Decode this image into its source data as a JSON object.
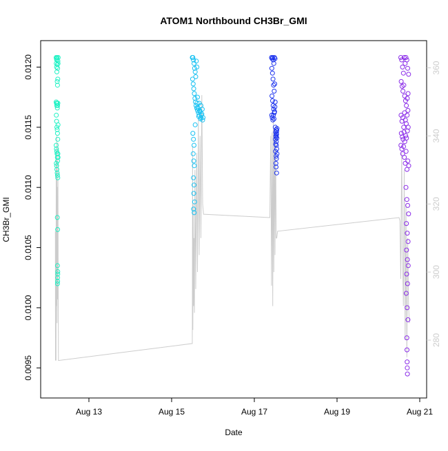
{
  "chart_data": {
    "type": "scatter",
    "title": "ATOM1 Northbound CH3Br_GMI",
    "xlabel": "Date",
    "ylabel": "CH3Br_GMI",
    "x_axis": {
      "type": "date",
      "range": [
        "2016-08-11T20:00",
        "2016-08-21T04:00"
      ],
      "ticks": [
        {
          "value": "2016-08-13",
          "label": "Aug 13"
        },
        {
          "value": "2016-08-15",
          "label": "Aug 15"
        },
        {
          "value": "2016-08-17",
          "label": "Aug 17"
        },
        {
          "value": "2016-08-19",
          "label": "Aug 19"
        },
        {
          "value": "2016-08-21",
          "label": "Aug 21"
        }
      ]
    },
    "y_axis_left": {
      "range": [
        0.00925,
        0.01222
      ],
      "ticks": [
        {
          "value": 0.0095,
          "label": "0.0095"
        },
        {
          "value": 0.01,
          "label": "0.0100"
        },
        {
          "value": 0.0105,
          "label": "0.0105"
        },
        {
          "value": 0.011,
          "label": "0.0110"
        },
        {
          "value": 0.0115,
          "label": "0.0115"
        },
        {
          "value": 0.012,
          "label": "0.0120"
        }
      ]
    },
    "y_axis_right": {
      "range": [
        263,
        368
      ],
      "color": "#cccccc",
      "ticks": [
        {
          "value": 280,
          "label": "280"
        },
        {
          "value": 300,
          "label": "300"
        },
        {
          "value": 320,
          "label": "320"
        },
        {
          "value": 340,
          "label": "340"
        },
        {
          "value": 360,
          "label": "360"
        }
      ]
    },
    "grid": false,
    "legend": "none",
    "colors": {
      "flight1": "#1ff2c4",
      "flight2": "#17c1f2",
      "flight3": "#1a31ee",
      "flight4": "#8a2be8",
      "secondary_line": "#cccccc",
      "axis": "#000000"
    },
    "series": [
      {
        "color_key": "flight1",
        "x": [
          "2016-08-12T05:00",
          "2016-08-12T05:10",
          "2016-08-12T05:20",
          "2016-08-12T05:30",
          "2016-08-12T05:40",
          "2016-08-12T05:50",
          "2016-08-12T06:00",
          "2016-08-12T06:10",
          "2016-08-12T05:05",
          "2016-08-12T05:15",
          "2016-08-12T05:25",
          "2016-08-12T05:35",
          "2016-08-12T05:45",
          "2016-08-12T05:55",
          "2016-08-12T06:05",
          "2016-08-12T05:00",
          "2016-08-12T05:10",
          "2016-08-12T05:20",
          "2016-08-12T05:30",
          "2016-08-12T05:40",
          "2016-08-12T05:50",
          "2016-08-12T06:00",
          "2016-08-12T05:05",
          "2016-08-12T05:15",
          "2016-08-12T05:25",
          "2016-08-12T05:35",
          "2016-08-12T05:45",
          "2016-08-12T05:55",
          "2016-08-12T06:05",
          "2016-08-12T05:00",
          "2016-08-12T05:10",
          "2016-08-12T05:20",
          "2016-08-12T05:30",
          "2016-08-12T05:40",
          "2016-08-12T05:50",
          "2016-08-12T06:00",
          "2016-08-12T05:05",
          "2016-08-12T05:15",
          "2016-08-12T05:25",
          "2016-08-12T05:35",
          "2016-08-12T05:45",
          "2016-08-12T05:55",
          "2016-08-12T06:05",
          "2016-08-12T05:40",
          "2016-08-12T05:50",
          "2016-08-12T05:45",
          "2016-08-12T05:55",
          "2016-08-12T05:50",
          "2016-08-12T05:45",
          "2016-08-12T05:50",
          "2016-08-12T05:55"
        ],
        "y": [
          0.01208,
          0.01207,
          0.01206,
          0.01208,
          0.01202,
          0.01199,
          0.01205,
          0.01208,
          0.01203,
          0.012,
          0.01196,
          0.01188,
          0.01185,
          0.0119,
          0.01203,
          0.01171,
          0.0117,
          0.01168,
          0.0117,
          0.01166,
          0.01168,
          0.0117,
          0.0116,
          0.01155,
          0.0115,
          0.01148,
          0.01145,
          0.0114,
          0.01152,
          0.01135,
          0.01132,
          0.0113,
          0.01128,
          0.01125,
          0.01122,
          0.01128,
          0.0112,
          0.01118,
          0.01115,
          0.01112,
          0.0111,
          0.01108,
          0.01125,
          0.01075,
          0.01065,
          0.01035,
          0.01028,
          0.01022,
          0.0102,
          0.01025,
          0.0103
        ]
      },
      {
        "color_key": "flight2",
        "x": [
          "2016-08-15T12:00",
          "2016-08-15T12:20",
          "2016-08-15T12:40",
          "2016-08-15T13:00",
          "2016-08-15T13:20",
          "2016-08-15T13:40",
          "2016-08-15T14:00",
          "2016-08-15T12:10",
          "2016-08-15T12:30",
          "2016-08-15T12:50",
          "2016-08-15T13:10",
          "2016-08-15T13:30",
          "2016-08-15T13:50",
          "2016-08-15T14:10",
          "2016-08-15T14:30",
          "2016-08-15T15:00",
          "2016-08-15T15:30",
          "2016-08-15T16:00",
          "2016-08-15T16:30",
          "2016-08-15T17:00",
          "2016-08-15T17:30",
          "2016-08-15T18:00",
          "2016-08-15T14:45",
          "2016-08-15T15:15",
          "2016-08-15T15:45",
          "2016-08-15T16:15",
          "2016-08-15T16:45",
          "2016-08-15T17:15",
          "2016-08-15T17:45",
          "2016-08-15T18:15",
          "2016-08-15T12:20",
          "2016-08-15T12:40",
          "2016-08-15T13:00",
          "2016-08-15T12:30",
          "2016-08-15T12:50",
          "2016-08-15T13:10",
          "2016-08-15T12:40",
          "2016-08-15T13:00",
          "2016-08-15T12:50",
          "2016-08-15T13:20",
          "2016-08-15T12:45",
          "2016-08-15T13:05",
          "2016-08-15T14:20",
          "2016-08-15T14:40",
          "2016-08-15T13:40",
          "2016-08-15T15:00",
          "2016-08-15T16:00",
          "2016-08-15T17:00"
        ],
        "y": [
          0.01208,
          0.01208,
          0.01206,
          0.01203,
          0.01199,
          0.01196,
          0.01192,
          0.0119,
          0.01186,
          0.01182,
          0.01178,
          0.01174,
          0.01171,
          0.01168,
          0.01166,
          0.01164,
          0.01162,
          0.0116,
          0.01163,
          0.01158,
          0.01161,
          0.01156,
          0.0117,
          0.01166,
          0.01159,
          0.01164,
          0.01157,
          0.0116,
          0.01165,
          0.01158,
          0.01145,
          0.0114,
          0.01135,
          0.01128,
          0.01122,
          0.01118,
          0.01108,
          0.01102,
          0.01095,
          0.01088,
          0.01082,
          0.01079,
          0.01205,
          0.012,
          0.01152,
          0.01175,
          0.0117,
          0.01168
        ]
      },
      {
        "color_key": "flight3",
        "x": [
          "2016-08-17T10:00",
          "2016-08-17T10:20",
          "2016-08-17T10:40",
          "2016-08-17T11:00",
          "2016-08-17T11:20",
          "2016-08-17T11:40",
          "2016-08-17T12:00",
          "2016-08-17T10:10",
          "2016-08-17T10:30",
          "2016-08-17T10:50",
          "2016-08-17T11:10",
          "2016-08-17T11:30",
          "2016-08-17T11:50",
          "2016-08-17T10:15",
          "2016-08-17T10:35",
          "2016-08-17T10:55",
          "2016-08-17T11:15",
          "2016-08-17T11:35",
          "2016-08-17T11:55",
          "2016-08-17T10:05",
          "2016-08-17T10:25",
          "2016-08-17T10:45",
          "2016-08-17T11:05",
          "2016-08-17T11:25",
          "2016-08-17T11:45",
          "2016-08-17T12:05",
          "2016-08-17T12:10",
          "2016-08-17T12:20",
          "2016-08-17T12:30",
          "2016-08-17T12:40",
          "2016-08-17T12:50",
          "2016-08-17T13:00",
          "2016-08-17T13:10",
          "2016-08-17T12:15",
          "2016-08-17T12:25",
          "2016-08-17T12:35",
          "2016-08-17T12:45",
          "2016-08-17T12:55",
          "2016-08-17T13:05",
          "2016-08-17T12:20",
          "2016-08-17T12:40",
          "2016-08-17T13:00",
          "2016-08-17T12:30",
          "2016-08-17T12:50",
          "2016-08-17T12:35",
          "2016-08-17T12:55",
          "2016-08-17T13:10",
          "2016-08-17T12:45"
        ],
        "y": [
          0.01208,
          0.01207,
          0.01208,
          0.01206,
          0.01203,
          0.01208,
          0.01207,
          0.01199,
          0.01195,
          0.0119,
          0.01185,
          0.0118,
          0.01186,
          0.01176,
          0.01172,
          0.01168,
          0.01165,
          0.01162,
          0.01167,
          0.0116,
          0.01158,
          0.01156,
          0.0116,
          0.01157,
          0.01163,
          0.01171,
          0.0115,
          0.01146,
          0.01143,
          0.01148,
          0.01145,
          0.01147,
          0.01149,
          0.0114,
          0.01136,
          0.01142,
          0.01138,
          0.01144,
          0.01141,
          0.0113,
          0.01126,
          0.01132,
          0.0112,
          0.01124,
          0.01117,
          0.01112,
          0.01128,
          0.01135
        ]
      },
      {
        "color_key": "flight4",
        "x": [
          "2016-08-20T13:00",
          "2016-08-20T13:30",
          "2016-08-20T14:00",
          "2016-08-20T14:30",
          "2016-08-20T15:00",
          "2016-08-20T15:30",
          "2016-08-20T16:00",
          "2016-08-20T16:30",
          "2016-08-20T17:00",
          "2016-08-20T17:30",
          "2016-08-20T13:15",
          "2016-08-20T13:45",
          "2016-08-20T14:15",
          "2016-08-20T14:45",
          "2016-08-20T15:15",
          "2016-08-20T15:45",
          "2016-08-20T16:15",
          "2016-08-20T16:45",
          "2016-08-20T17:15",
          "2016-08-20T13:10",
          "2016-08-20T13:40",
          "2016-08-20T14:10",
          "2016-08-20T14:40",
          "2016-08-20T15:10",
          "2016-08-20T15:40",
          "2016-08-20T16:10",
          "2016-08-20T16:40",
          "2016-08-20T17:10",
          "2016-08-20T13:20",
          "2016-08-20T13:50",
          "2016-08-20T14:20",
          "2016-08-20T14:50",
          "2016-08-20T15:20",
          "2016-08-20T15:50",
          "2016-08-20T16:20",
          "2016-08-20T16:50",
          "2016-08-20T17:20",
          "2016-08-20T13:05",
          "2016-08-20T13:35",
          "2016-08-20T14:05",
          "2016-08-20T14:35",
          "2016-08-20T15:05",
          "2016-08-20T15:35",
          "2016-08-20T16:05",
          "2016-08-20T16:35",
          "2016-08-20T17:05",
          "2016-08-20T17:35",
          "2016-08-20T16:00",
          "2016-08-20T16:30",
          "2016-08-20T17:00",
          "2016-08-20T17:30",
          "2016-08-20T16:15",
          "2016-08-20T16:45",
          "2016-08-20T17:15",
          "2016-08-20T16:20",
          "2016-08-20T16:50",
          "2016-08-20T17:20",
          "2016-08-20T16:25",
          "2016-08-20T16:55",
          "2016-08-20T16:10",
          "2016-08-20T16:40",
          "2016-08-20T17:10",
          "2016-08-20T16:30",
          "2016-08-20T16:35",
          "2016-08-20T16:40",
          "2016-08-20T16:45",
          "2016-08-20T16:50"
        ],
        "y": [
          0.01208,
          0.01206,
          0.012,
          0.01195,
          0.01208,
          0.01203,
          0.01208,
          0.01206,
          0.01199,
          0.01194,
          0.01188,
          0.01184,
          0.0118,
          0.01185,
          0.01176,
          0.01172,
          0.01168,
          0.01174,
          0.01178,
          0.0116,
          0.01155,
          0.01158,
          0.0115,
          0.01162,
          0.01156,
          0.01153,
          0.0116,
          0.01164,
          0.01145,
          0.01142,
          0.0114,
          0.01146,
          0.01138,
          0.01143,
          0.01141,
          0.01147,
          0.0115,
          0.01135,
          0.01132,
          0.01128,
          0.01134,
          0.01125,
          0.0112,
          0.0113,
          0.01115,
          0.01122,
          0.01118,
          0.011,
          0.0109,
          0.01085,
          0.01078,
          0.0107,
          0.01062,
          0.01055,
          0.01048,
          0.0104,
          0.01035,
          0.01028,
          0.0102,
          0.01012,
          0.01,
          0.0099,
          0.00975,
          0.00965,
          0.00955,
          0.0095,
          0.00945
        ]
      }
    ],
    "secondary_series": {
      "axis": "right",
      "type": "line",
      "x": [
        "2016-08-12T04:30",
        "2016-08-12T04:35",
        "2016-08-12T04:40",
        "2016-08-12T04:45",
        "2016-08-12T04:50",
        "2016-08-12T04:55",
        "2016-08-12T05:00",
        "2016-08-12T05:10",
        "2016-08-12T05:20",
        "2016-08-12T05:30",
        "2016-08-12T05:40",
        "2016-08-12T05:50",
        "2016-08-12T06:00",
        "2016-08-12T06:10",
        "2016-08-12T06:20",
        "2016-08-15T12:00",
        "2016-08-15T12:10",
        "2016-08-15T12:20",
        "2016-08-15T12:30",
        "2016-08-15T12:45",
        "2016-08-15T13:00",
        "2016-08-15T13:15",
        "2016-08-15T13:30",
        "2016-08-15T14:00",
        "2016-08-15T14:30",
        "2016-08-15T15:00",
        "2016-08-15T15:30",
        "2016-08-15T16:00",
        "2016-08-15T16:30",
        "2016-08-15T17:00",
        "2016-08-15T17:30",
        "2016-08-15T18:00",
        "2016-08-15T18:30",
        "2016-08-17T09:00",
        "2016-08-17T09:30",
        "2016-08-17T10:00",
        "2016-08-17T10:20",
        "2016-08-17T10:40",
        "2016-08-17T11:00",
        "2016-08-17T11:20",
        "2016-08-17T11:40",
        "2016-08-17T12:00",
        "2016-08-17T12:20",
        "2016-08-17T12:40",
        "2016-08-17T13:00",
        "2016-08-17T13:30",
        "2016-08-20T12:00",
        "2016-08-20T12:30",
        "2016-08-20T13:00",
        "2016-08-20T13:30",
        "2016-08-20T14:00",
        "2016-08-20T14:30",
        "2016-08-20T15:00",
        "2016-08-20T15:30",
        "2016-08-20T16:00",
        "2016-08-20T16:30",
        "2016-08-20T17:00",
        "2016-08-20T17:30",
        "2016-08-20T18:00"
      ],
      "y": [
        312,
        274,
        311,
        300,
        312,
        274,
        333,
        290,
        340,
        285,
        325,
        292,
        338,
        300,
        274,
        279,
        337,
        283,
        320,
        290,
        310,
        288,
        330,
        295,
        335,
        300,
        345,
        305,
        340,
        310,
        352,
        320,
        317,
        316,
        340,
        296,
        341,
        290,
        345,
        300,
        342,
        305,
        340,
        310,
        310,
        312,
        316,
        315,
        298,
        335,
        305,
        290,
        330,
        280,
        320,
        275,
        310,
        290,
        285
      ]
    }
  }
}
